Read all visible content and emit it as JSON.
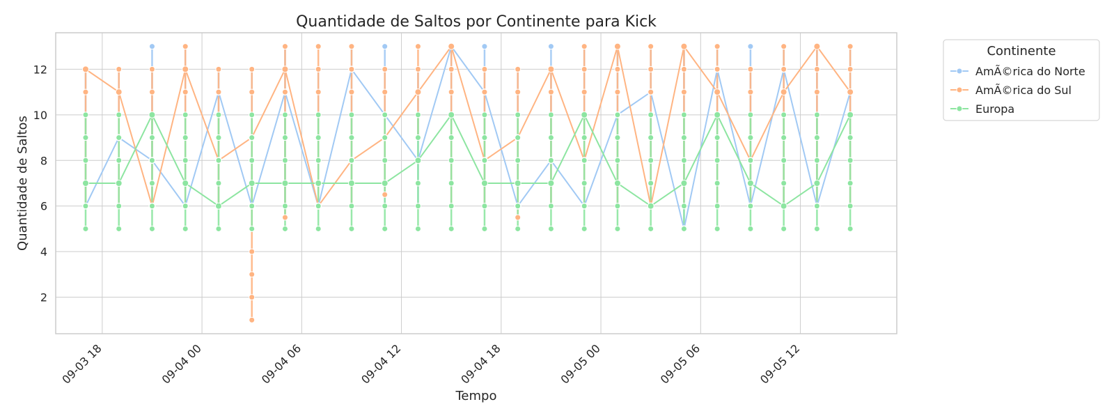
{
  "chart_data": {
    "type": "line",
    "title": "Quantidade de Saltos por Continente para Kick",
    "xlabel": "Tempo",
    "ylabel": "Quantidade de Saltos",
    "x_tick_labels": [
      "09-03 18",
      "09-04 00",
      "09-04 06",
      "09-04 12",
      "09-04 18",
      "09-05 00",
      "09-05 06",
      "09-05 12"
    ],
    "x_tick_hours": [
      18,
      24,
      30,
      36,
      42,
      48,
      54,
      60
    ],
    "y_ticks": [
      2,
      4,
      6,
      8,
      10,
      12
    ],
    "xlim_hours": [
      15.2,
      65.8
    ],
    "ylim": [
      0.4,
      13.6
    ],
    "grid": true,
    "legend": {
      "title": "Continente",
      "placement": "outside-top-right"
    },
    "x_hours": [
      17,
      19,
      21,
      23,
      25,
      27,
      29,
      31,
      33,
      35,
      37,
      39,
      41,
      43,
      45,
      47,
      49,
      51,
      53,
      55,
      57,
      59,
      61,
      63
    ],
    "series": [
      {
        "name": "AmÃ©rica do Norte",
        "color": "#a1c9f4",
        "values": [
          6,
          9,
          8,
          6,
          11,
          6,
          11,
          6,
          12,
          10,
          8,
          13,
          11,
          6,
          8,
          6,
          10,
          11,
          5,
          12,
          6,
          12,
          6,
          11
        ],
        "range_min": [
          6,
          6,
          6,
          6,
          6,
          6,
          6,
          6,
          6,
          6,
          6,
          6,
          6,
          6,
          6,
          6,
          6,
          6,
          5,
          6,
          6,
          6,
          6,
          6
        ],
        "range_max": [
          12,
          12,
          13,
          13,
          12,
          12,
          13,
          12,
          13,
          13,
          12,
          13,
          13,
          12,
          13,
          13,
          13,
          13,
          13,
          13,
          13,
          13,
          13,
          13
        ]
      },
      {
        "name": "AmÃ©rica do Sul",
        "color": "#ffb482",
        "values": [
          12,
          11,
          6,
          12,
          8,
          9,
          12,
          6,
          8,
          9,
          11,
          13,
          8,
          9,
          12,
          8,
          13,
          6,
          13,
          11,
          8,
          11,
          13,
          11
        ],
        "range_min": [
          6,
          6,
          6,
          6,
          6,
          1,
          5.5,
          6,
          6,
          6.5,
          9,
          6,
          6,
          5.5,
          6,
          6,
          6,
          6,
          6,
          6,
          6,
          6,
          6,
          6
        ],
        "range_max": [
          12,
          12,
          12,
          13,
          12,
          12,
          13,
          13,
          13,
          12,
          13,
          13,
          12,
          12,
          12,
          13,
          13,
          13,
          13,
          13,
          12,
          13,
          13,
          13
        ]
      },
      {
        "name": "Europa",
        "color": "#8de5a1",
        "values": [
          7,
          7,
          10,
          7,
          6,
          7,
          7,
          7,
          7,
          7,
          8,
          10,
          7,
          7,
          7,
          10,
          7,
          6,
          7,
          10,
          7,
          6,
          7,
          10
        ],
        "range_min": [
          5,
          5,
          5,
          5,
          5,
          5,
          5,
          5,
          5,
          5,
          5,
          5,
          5,
          5,
          5,
          5,
          5,
          5,
          5,
          5,
          5,
          5,
          5,
          5
        ],
        "range_max": [
          10,
          10,
          10,
          10,
          10,
          10,
          10,
          10,
          10,
          10,
          10,
          10,
          10,
          10,
          10,
          10,
          10,
          10,
          10,
          10,
          10,
          10,
          10,
          10
        ]
      }
    ]
  }
}
